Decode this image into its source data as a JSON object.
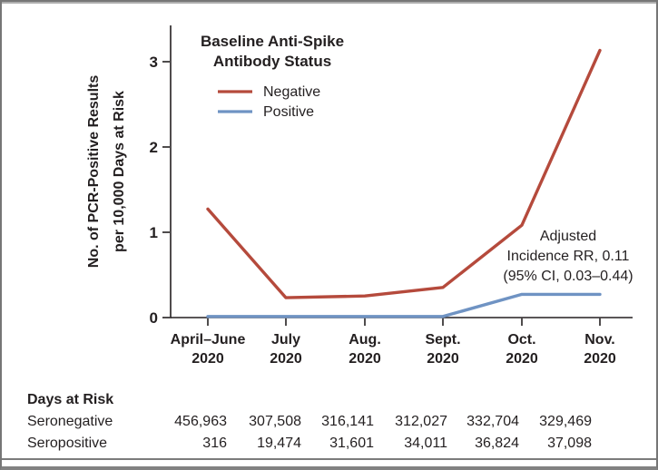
{
  "chart_data": {
    "type": "line",
    "title": "",
    "xlabel": "",
    "ylabel": "No. of PCR-Positive Results per 10,000 Days at Risk",
    "ylabel_lines": [
      "No. of PCR-Positive Results",
      "per 10,000 Days at Risk"
    ],
    "ylim": [
      0,
      3.4
    ],
    "yticks": [
      "0",
      "1",
      "2",
      "3"
    ],
    "grid": "off",
    "categories": [
      "April–June 2020",
      "July 2020",
      "Aug. 2020",
      "Sept. 2020",
      "Oct. 2020",
      "Nov. 2020"
    ],
    "x_labels": [
      {
        "month": "April–June",
        "year": "2020"
      },
      {
        "month": "July",
        "year": "2020"
      },
      {
        "month": "Aug.",
        "year": "2020"
      },
      {
        "month": "Sept.",
        "year": "2020"
      },
      {
        "month": "Oct.",
        "year": "2020"
      },
      {
        "month": "Nov.",
        "year": "2020"
      }
    ],
    "legend": {
      "position": "top-left-inside",
      "title_lines": [
        "Baseline Anti-Spike",
        "Antibody Status"
      ],
      "items": [
        {
          "label": "Negative",
          "color": "#b54a3c"
        },
        {
          "label": "Positive",
          "color": "#6f93c3"
        }
      ]
    },
    "series": [
      {
        "name": "Negative",
        "color": "#b54a3c",
        "values": [
          1.26,
          0.22,
          0.24,
          0.34,
          1.07,
          3.12
        ]
      },
      {
        "name": "Positive",
        "color": "#6f93c3",
        "values": [
          0,
          0,
          0,
          0,
          0.26,
          0.26
        ]
      }
    ],
    "annotation": {
      "lines": [
        "Adjusted",
        "Incidence RR, 0.11",
        "(95% CI, 0.03–0.44)"
      ]
    }
  },
  "table": {
    "header": "Days at Risk",
    "rows": [
      {
        "label": "Seronegative",
        "values": [
          "456,963",
          "307,508",
          "316,141",
          "312,027",
          "332,704",
          "329,469"
        ]
      },
      {
        "label": "Seropositive",
        "values": [
          "316",
          "19,474",
          "31,601",
          "34,011",
          "36,824",
          "37,098"
        ]
      }
    ]
  }
}
